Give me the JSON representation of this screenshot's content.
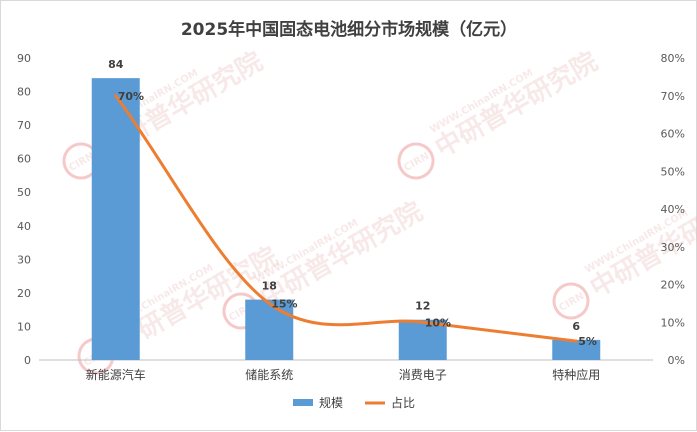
{
  "chart_data": {
    "type": "bar",
    "title": "2025年中国固态电池细分市场规模（亿元）",
    "categories": [
      "新能源汽车",
      "储能系统",
      "消费电子",
      "特种应用"
    ],
    "series": [
      {
        "name": "规模",
        "kind": "bar",
        "axis": "left",
        "color": "#5b9bd5",
        "values": [
          84,
          18,
          12,
          6
        ],
        "labels": [
          "84",
          "18",
          "12",
          "6"
        ]
      },
      {
        "name": "占比",
        "kind": "line",
        "smooth": true,
        "axis": "right",
        "color": "#ed7d31",
        "values": [
          70,
          15,
          10,
          5
        ],
        "labels": [
          "70%",
          "15%",
          "10%",
          "5%"
        ]
      }
    ],
    "y_left": {
      "min": 0,
      "max": 90,
      "step": 10
    },
    "y_right": {
      "min": 0,
      "max": 80,
      "step": 10,
      "suffix": "%"
    },
    "grid": false,
    "legend": "bottom"
  },
  "watermark": {
    "brand_text": "中研普华研究院",
    "url_text": "WWW.ChinaIRN.COM",
    "logo_text": "CIRN",
    "color": "#e04040"
  }
}
